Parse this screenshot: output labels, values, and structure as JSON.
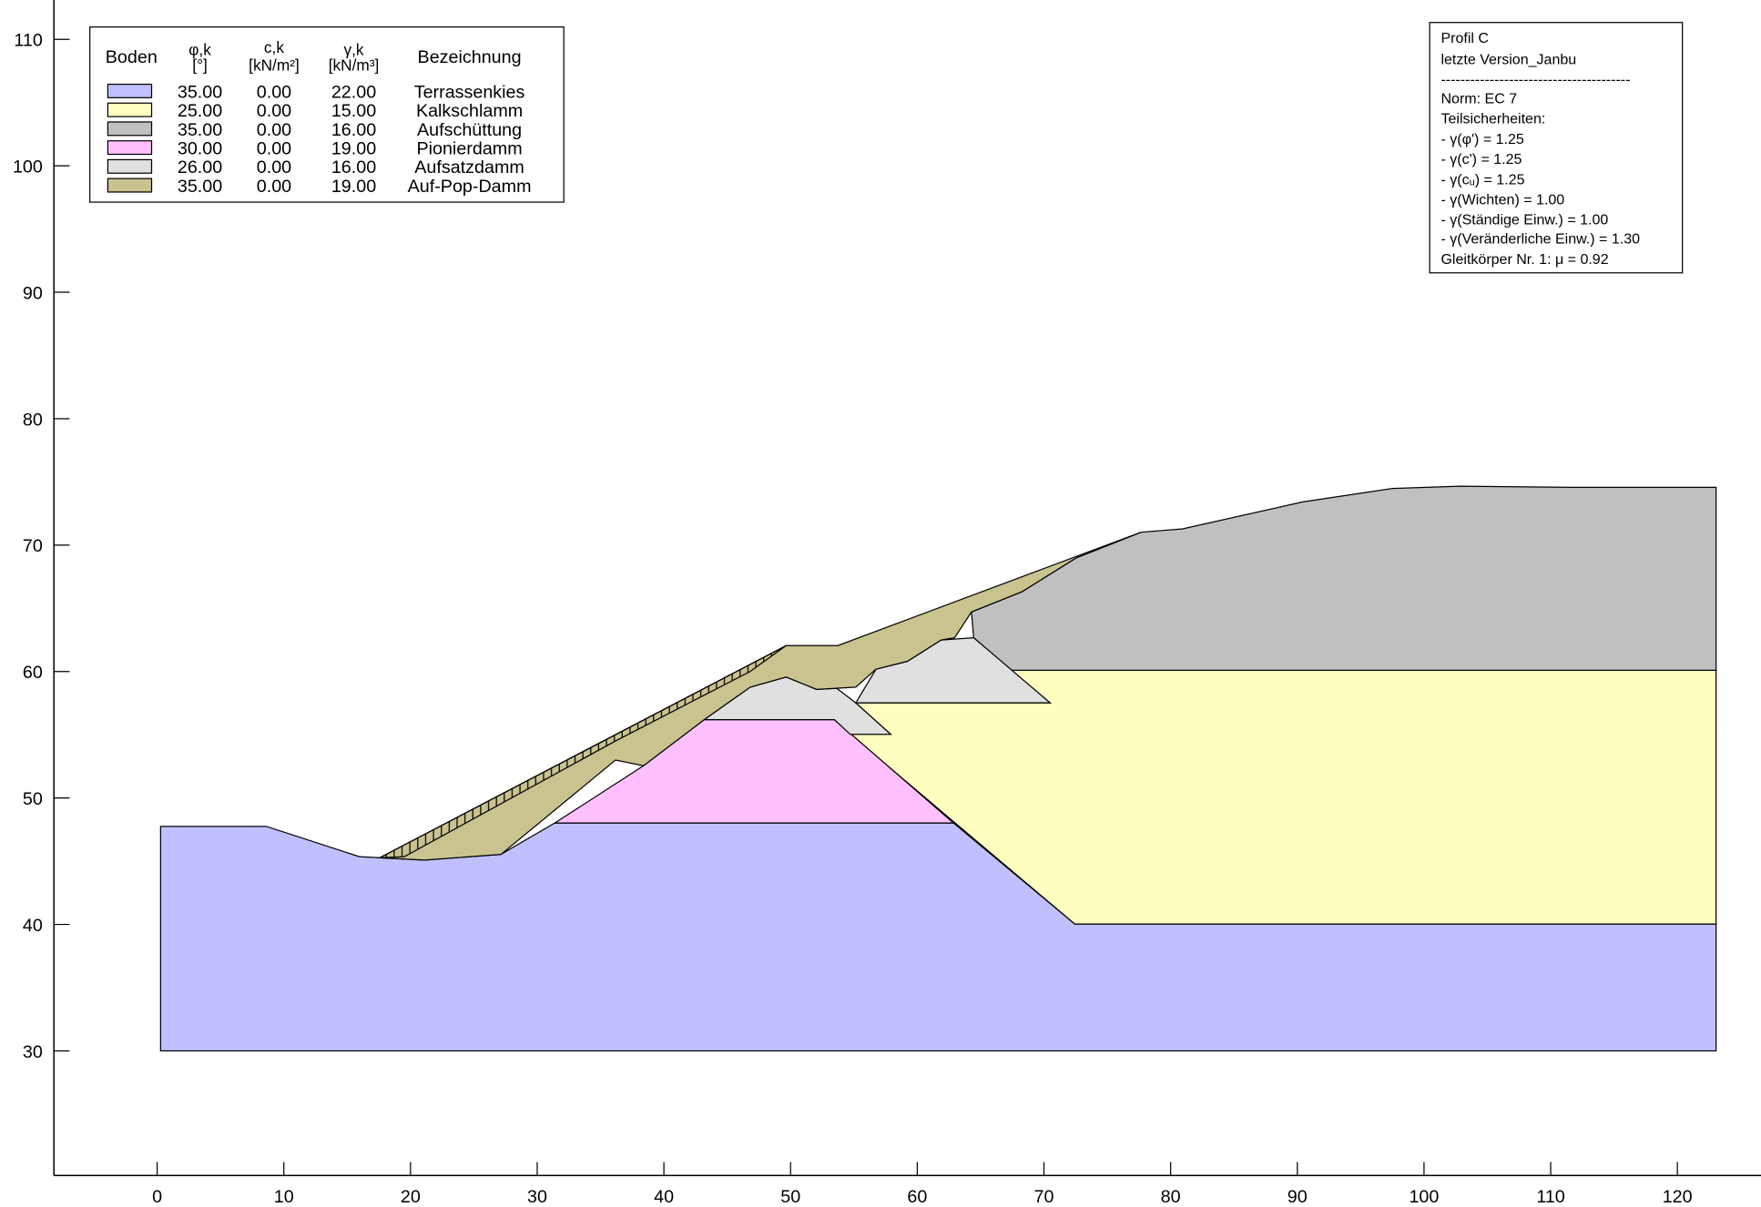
{
  "axes": {
    "xlim": [
      -8.15,
      126.6
    ],
    "ylim": [
      20.14,
      112.4
    ],
    "xticks": [
      0,
      10,
      20,
      30,
      40,
      50,
      60,
      70,
      80,
      90,
      100,
      110,
      120
    ],
    "yticks": [
      30,
      40,
      50,
      60,
      70,
      80,
      90,
      100,
      110
    ]
  },
  "legend": {
    "headers": {
      "boden": "Boden",
      "phi": "φ,k",
      "phi_unit": "[°]",
      "c": "c,k",
      "c_unit": "[kN/m²]",
      "gamma": "γ,k",
      "gamma_unit": "[kN/m³]",
      "name": "Bezeichnung"
    },
    "rows": [
      {
        "color": "#c0c0ff",
        "phi": "35.00",
        "c": "0.00",
        "gamma": "22.00",
        "name": "Terrassenkies"
      },
      {
        "color": "#ffffc0",
        "phi": "25.00",
        "c": "0.00",
        "gamma": "15.00",
        "name": "Kalkschlamm"
      },
      {
        "color": "#c0c0c0",
        "phi": "35.00",
        "c": "0.00",
        "gamma": "16.00",
        "name": "Aufschüttung"
      },
      {
        "color": "#ffc0ff",
        "phi": "30.00",
        "c": "0.00",
        "gamma": "19.00",
        "name": "Pionierdamm"
      },
      {
        "color": "#e0e0e0",
        "phi": "26.00",
        "c": "0.00",
        "gamma": "16.00",
        "name": "Aufsatzdamm"
      },
      {
        "color": "#c9c38f",
        "phi": "35.00",
        "c": "0.00",
        "gamma": "19.00",
        "name": "Auf-Pop-Damm"
      }
    ]
  },
  "info": {
    "lines": [
      "Profil C",
      "letzte Version_Janbu",
      "---------------------------------------",
      "Norm:  EC 7",
      "Teilsicherheiten:",
      " - γ(φ') = 1.25",
      " - γ(c') = 1.25",
      " - γ(cᵤ) = 1.25",
      " - γ(Wichten) = 1.00",
      " - γ(Ständige Einw.) = 1.00",
      " - γ(Veränderliche Einw.) = 1.30",
      "Gleitkörper Nr. 1: μ = 0.92"
    ]
  }
}
